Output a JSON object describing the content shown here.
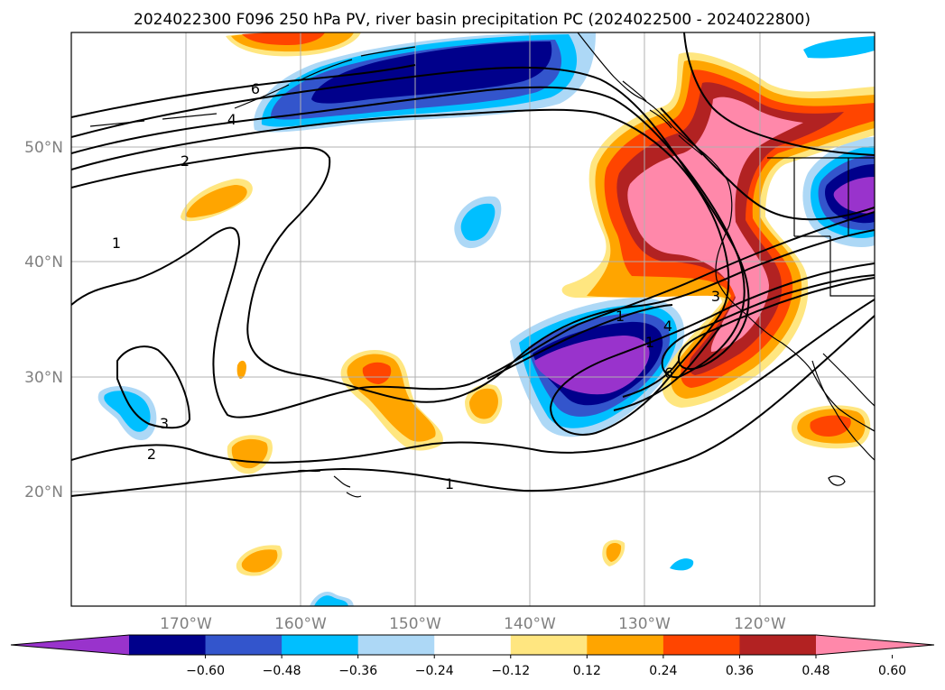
{
  "title": "2024022300 F096 250 hPa PV, river basin precipitation PC (2024022500 - 2024022800)",
  "map": {
    "lat_labels": [
      {
        "lat": 50,
        "label": "50°N"
      },
      {
        "lat": 40,
        "label": "40°N"
      },
      {
        "lat": 30,
        "label": "30°N"
      },
      {
        "lat": 20,
        "label": "20°N"
      }
    ],
    "lon_labels": [
      {
        "lon": -170,
        "label": "170°W"
      },
      {
        "lon": -160,
        "label": "160°W"
      },
      {
        "lon": -150,
        "label": "150°W"
      },
      {
        "lon": -140,
        "label": "140°W"
      },
      {
        "lon": -130,
        "label": "130°W"
      },
      {
        "lon": -120,
        "label": "120°W"
      }
    ],
    "pv_contour_labels": [
      "6",
      "4",
      "2",
      "1",
      "1",
      "3",
      "2",
      "1",
      "1",
      "3",
      "4",
      "6"
    ],
    "grid": true
  },
  "colorbar": {
    "ticks": [
      "−0.60",
      "−0.48",
      "−0.36",
      "−0.24",
      "−0.12",
      "0.12",
      "0.24",
      "0.36",
      "0.48",
      "0.60"
    ],
    "colors": [
      "#9933cc",
      "#00008b",
      "#3355cc",
      "#00bfff",
      "#add8f6",
      "#ffffff",
      "#ffe680",
      "#ffa500",
      "#ff4500",
      "#b22222",
      "#ff88aa"
    ],
    "extend": "both"
  },
  "colors": {
    "purple": "#9933cc",
    "navy": "#00008b",
    "royal": "#3355cc",
    "sky": "#00bfff",
    "pale_blue": "#add8f6",
    "pale_yellow": "#ffe680",
    "orange": "#ffa500",
    "red_orange": "#ff4500",
    "firebrick": "#b22222",
    "pink": "#ff88aa"
  }
}
